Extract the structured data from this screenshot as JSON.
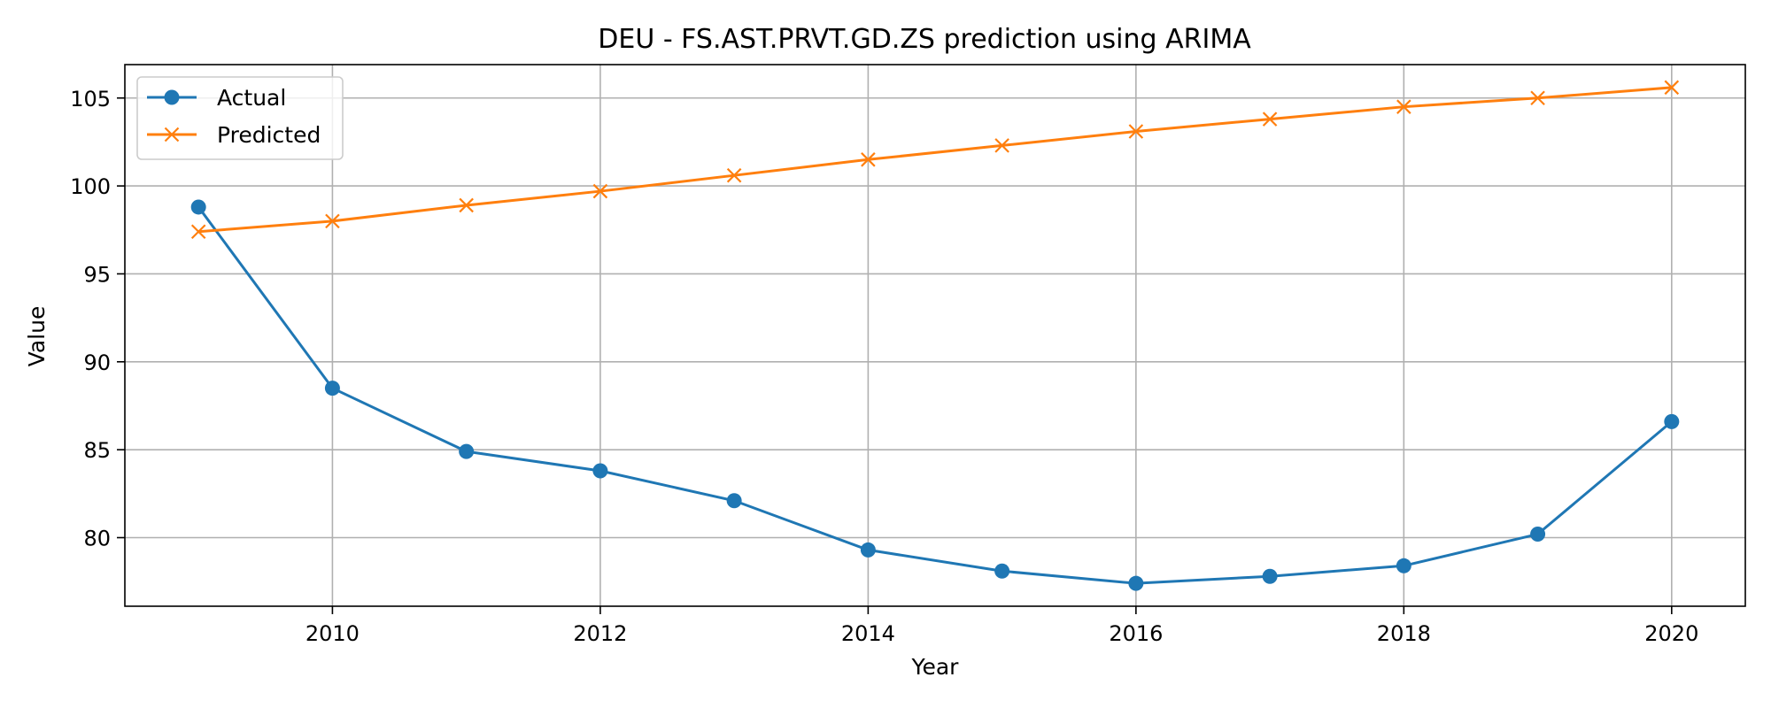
{
  "chart_data": {
    "type": "line",
    "title": "DEU - FS.AST.PRVT.GD.ZS prediction using ARIMA",
    "xlabel": "Year",
    "ylabel": "Value",
    "x": [
      2009,
      2010,
      2011,
      2012,
      2013,
      2014,
      2015,
      2016,
      2017,
      2018,
      2019,
      2020
    ],
    "xlim": [
      2008.45,
      2020.55
    ],
    "ylim": [
      76.1,
      106.9
    ],
    "xticks": [
      2010,
      2012,
      2014,
      2016,
      2018,
      2020
    ],
    "yticks": [
      80,
      85,
      90,
      95,
      100,
      105
    ],
    "grid": true,
    "legend_position": "top-left",
    "series": [
      {
        "name": "Actual",
        "color": "#1f77b4",
        "marker": "circle",
        "values": [
          98.8,
          88.5,
          84.9,
          83.8,
          82.1,
          79.3,
          78.1,
          77.4,
          77.8,
          78.4,
          80.2,
          86.6
        ]
      },
      {
        "name": "Predicted",
        "color": "#ff7f0e",
        "marker": "x",
        "values": [
          97.4,
          98.0,
          98.9,
          99.7,
          100.6,
          101.5,
          102.3,
          103.1,
          103.8,
          104.5,
          105.0,
          105.6
        ]
      }
    ]
  }
}
